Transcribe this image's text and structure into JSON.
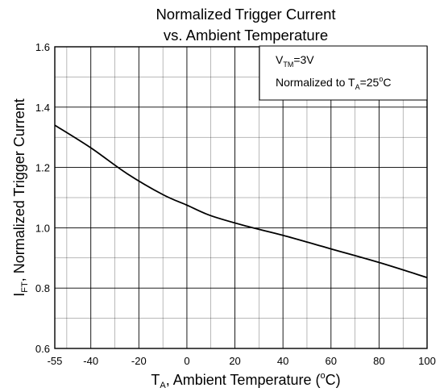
{
  "chart_data": {
    "type": "line",
    "title_line1": "Normalized Trigger Current",
    "title_line2": "vs. Ambient Temperature",
    "xlabel": {
      "main": "T",
      "sub": "A",
      "rest": ", Ambient Temperature (",
      "sup": "o",
      "unit": "C)"
    },
    "ylabel": {
      "main": "I",
      "sub": "FT",
      "rest": ", Normalized Trigger Current"
    },
    "xlim": [
      -55,
      100
    ],
    "ylim": [
      0.6,
      1.6
    ],
    "x_ticks": [
      -55,
      -40,
      -20,
      0,
      20,
      40,
      60,
      80,
      100
    ],
    "x_tick_labels": [
      "-55",
      "-40",
      "-20",
      "0",
      "20",
      "40",
      "60",
      "80",
      "100"
    ],
    "y_ticks": [
      0.6,
      0.8,
      1.0,
      1.2,
      1.4,
      1.6
    ],
    "y_tick_labels": [
      "0.6",
      "0.8",
      "1.0",
      "1.2",
      "1.4",
      "1.6"
    ],
    "x_minor_gridlines": [
      -50,
      -30,
      -10,
      10,
      30,
      50,
      70,
      90
    ],
    "y_minor_gridlines": [
      0.7,
      0.9,
      1.1,
      1.3,
      1.5
    ],
    "grid": true,
    "series": [
      {
        "x": [
          -55,
          -40,
          -25,
          -10,
          0,
          10,
          25,
          40,
          60,
          80,
          100
        ],
        "y": [
          1.34,
          1.265,
          1.18,
          1.11,
          1.075,
          1.04,
          1.005,
          0.975,
          0.93,
          0.885,
          0.835
        ]
      }
    ],
    "annotation": {
      "line1": {
        "main": "V",
        "sub": "TM",
        "rest": "=3V"
      },
      "line2": {
        "main": "Normalized to T",
        "sub": "A",
        "rest": "=25",
        "sup": "o",
        "unit": "C"
      }
    }
  },
  "colors": {
    "line": "#000000",
    "grid": "#000000",
    "background": "#ffffff"
  }
}
